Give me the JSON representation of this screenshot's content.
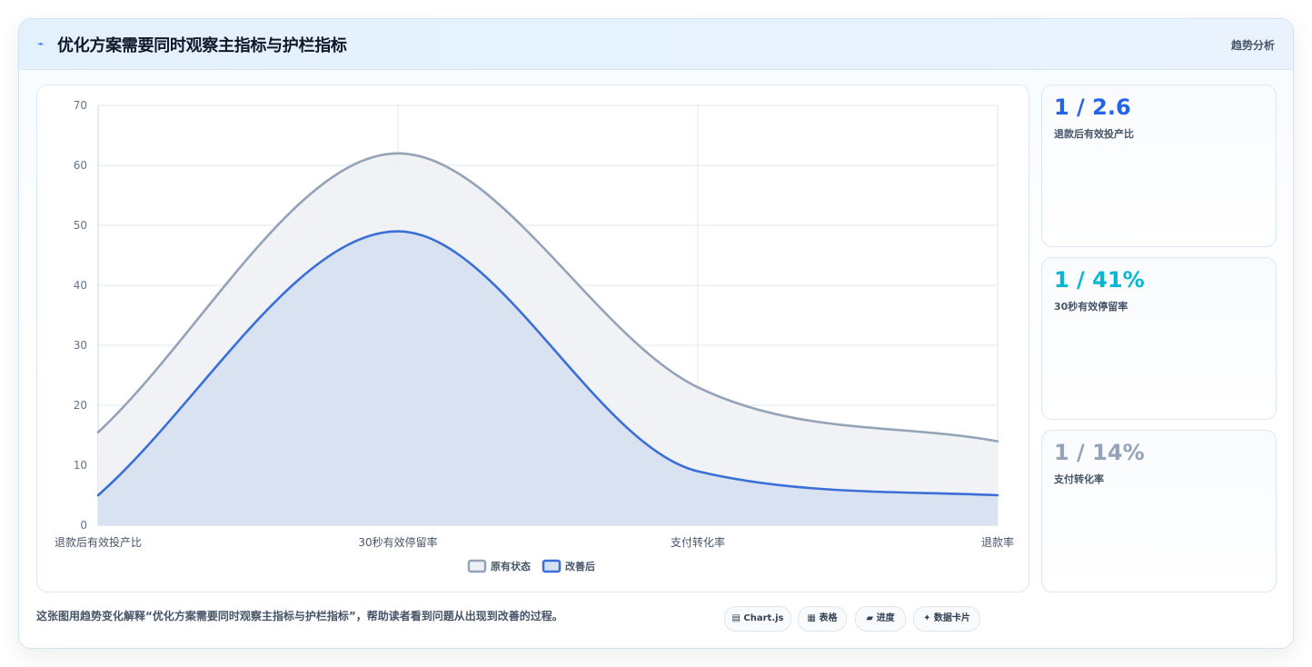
{
  "header": {
    "icon": "trend-line-icon",
    "title": "优化方案需要同时观察主指标与护栏指标",
    "right_label": "趋势分析"
  },
  "chart_data": {
    "type": "area",
    "categories": [
      "退款后有效投产比",
      "30秒有效停留率",
      "支付转化率",
      "退款率"
    ],
    "series": [
      {
        "name": "原有状态",
        "values": [
          15.5,
          62,
          23,
          14
        ],
        "color": "#94a3b8",
        "fill": "#eef1f5"
      },
      {
        "name": "改善后",
        "values": [
          5,
          49,
          9,
          5
        ],
        "color": "#3b6fd8",
        "fill": "#d5e0f0"
      }
    ],
    "y_ticks": [
      0,
      10,
      20,
      30,
      40,
      50,
      60,
      70
    ],
    "ylim": [
      0,
      70
    ],
    "grid": true,
    "legend_position": "bottom"
  },
  "kpis": [
    {
      "value": "1 / 2.6",
      "label": "退款后有效投产比",
      "color": "#2563eb"
    },
    {
      "value": "1 / 41%",
      "label": "30秒有效停留率",
      "color": "#06b6d4"
    },
    {
      "value": "1 / 14%",
      "label": "支付转化率",
      "color": "#94a3b8"
    }
  ],
  "caption": "这张图用趋势变化解释“优化方案需要同时观察主指标与护栏指标”，帮助读者看到问题从出现到改善的过程。",
  "pills": [
    {
      "icon": "chart-icon",
      "label": "▤ Chart.js"
    },
    {
      "icon": "table-icon",
      "label": "▦ 表格"
    },
    {
      "icon": "progress-icon",
      "label": "▰ 进度"
    },
    {
      "icon": "data-card-icon",
      "label": "✦ 数据卡片"
    }
  ]
}
